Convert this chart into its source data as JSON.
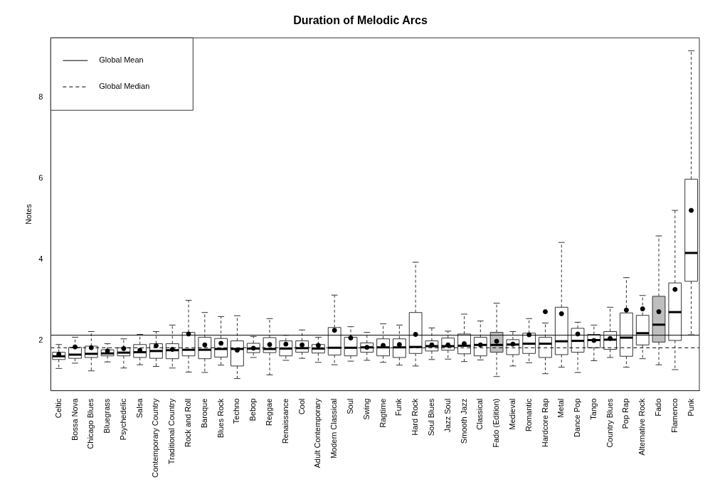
{
  "chart_data": {
    "type": "box",
    "title": "Duration of Melodic Arcs",
    "ylabel": "Notes",
    "categories": [
      "Celtic",
      "Bossa Nova",
      "Chicago Blues",
      "Bluegrass",
      "Psychedelic",
      "Salsa",
      "Contemporary Country",
      "Traditional Country",
      "Rock and Roll",
      "Baroque",
      "Blues Rock",
      "Techno",
      "Bebop",
      "Reggae",
      "Renaissance",
      "Cool",
      "Adult Contemporary",
      "Modern Classical",
      "Soul",
      "Swing",
      "Ragtime",
      "Funk",
      "Hard Rock",
      "Soul Blues",
      "Jazz Soul",
      "Smooth Jazz",
      "Classical",
      "Fado (Edition)",
      "Medieval",
      "Romantic",
      "Hardcore Rap",
      "Metal",
      "Dance Pop",
      "Tango",
      "Country Blues",
      "Pop Rap",
      "Alternative Rock",
      "Fado",
      "Flamenco",
      "Punk"
    ],
    "boxes": [
      {
        "low": 1.31,
        "q1": 1.53,
        "median": 1.61,
        "q3": 1.71,
        "high": 1.9,
        "mean": 1.66
      },
      {
        "low": 1.44,
        "q1": 1.56,
        "median": 1.65,
        "q3": 1.83,
        "high": 2.08,
        "mean": 1.84
      },
      {
        "low": 1.25,
        "q1": 1.58,
        "median": 1.67,
        "q3": 1.86,
        "high": 2.22,
        "mean": 1.82
      },
      {
        "low": 1.47,
        "q1": 1.62,
        "median": 1.68,
        "q3": 1.77,
        "high": 1.92,
        "mean": 1.74
      },
      {
        "low": 1.32,
        "q1": 1.62,
        "median": 1.7,
        "q3": 1.82,
        "high": 2.04,
        "mean": 1.8
      },
      {
        "low": 1.4,
        "q1": 1.58,
        "median": 1.71,
        "q3": 1.9,
        "high": 2.15,
        "mean": 1.76
      },
      {
        "low": 1.36,
        "q1": 1.56,
        "median": 1.74,
        "q3": 1.92,
        "high": 2.22,
        "mean": 1.87
      },
      {
        "low": 1.32,
        "q1": 1.55,
        "median": 1.76,
        "q3": 1.92,
        "high": 2.38,
        "mean": 1.78
      },
      {
        "low": 1.22,
        "q1": 1.62,
        "median": 1.77,
        "q3": 2.2,
        "high": 2.99,
        "mean": 2.16
      },
      {
        "low": 1.21,
        "q1": 1.55,
        "median": 1.77,
        "q3": 2.08,
        "high": 2.69,
        "mean": 1.89
      },
      {
        "low": 1.39,
        "q1": 1.59,
        "median": 1.79,
        "q3": 2.05,
        "high": 2.59,
        "mean": 1.93
      },
      {
        "low": 1.06,
        "q1": 1.37,
        "median": 1.79,
        "q3": 1.99,
        "high": 2.61,
        "mean": 1.76
      },
      {
        "low": 1.58,
        "q1": 1.7,
        "median": 1.8,
        "q3": 1.93,
        "high": 2.1,
        "mean": 1.81
      },
      {
        "low": 1.15,
        "q1": 1.7,
        "median": 1.79,
        "q3": 2.07,
        "high": 2.54,
        "mean": 1.9
      },
      {
        "low": 1.51,
        "q1": 1.62,
        "median": 1.8,
        "q3": 1.99,
        "high": 2.13,
        "mean": 1.91
      },
      {
        "low": 1.56,
        "q1": 1.71,
        "median": 1.81,
        "q3": 1.99,
        "high": 2.26,
        "mean": 1.89
      },
      {
        "low": 1.46,
        "q1": 1.69,
        "median": 1.8,
        "q3": 1.9,
        "high": 2.08,
        "mean": 1.88
      },
      {
        "low": 1.4,
        "q1": 1.64,
        "median": 1.82,
        "q3": 2.32,
        "high": 3.12,
        "mean": 2.25
      },
      {
        "low": 1.49,
        "q1": 1.62,
        "median": 1.82,
        "q3": 2.08,
        "high": 2.34,
        "mean": 2.06
      },
      {
        "low": 1.51,
        "q1": 1.71,
        "median": 1.83,
        "q3": 1.94,
        "high": 2.2,
        "mean": 1.83
      },
      {
        "low": 1.46,
        "q1": 1.62,
        "median": 1.83,
        "q3": 2.04,
        "high": 2.41,
        "mean": 1.88
      },
      {
        "low": 1.39,
        "q1": 1.58,
        "median": 1.83,
        "q3": 2.04,
        "high": 2.38,
        "mean": 1.9
      },
      {
        "low": 1.37,
        "q1": 1.68,
        "median": 1.84,
        "q3": 2.69,
        "high": 3.93,
        "mean": 2.15
      },
      {
        "low": 1.53,
        "q1": 1.74,
        "median": 1.86,
        "q3": 1.99,
        "high": 2.31,
        "mean": 1.89
      },
      {
        "low": 1.54,
        "q1": 1.76,
        "median": 1.86,
        "q3": 2.06,
        "high": 2.23,
        "mean": 1.89
      },
      {
        "low": 1.48,
        "q1": 1.67,
        "median": 1.87,
        "q3": 2.16,
        "high": 2.65,
        "mean": 1.92
      },
      {
        "low": 1.52,
        "q1": 1.62,
        "median": 1.89,
        "q3": 2.08,
        "high": 2.48,
        "mean": 1.89
      },
      {
        "low": 1.11,
        "q1": 1.71,
        "median": 1.89,
        "q3": 2.2,
        "high": 2.92,
        "mean": 1.98
      },
      {
        "low": 1.37,
        "q1": 1.65,
        "median": 1.9,
        "q3": 2.02,
        "high": 2.22,
        "mean": 1.91
      },
      {
        "low": 1.45,
        "q1": 1.68,
        "median": 1.92,
        "q3": 2.18,
        "high": 2.54,
        "mean": 2.14
      },
      {
        "low": 1.18,
        "q1": 1.58,
        "median": 1.92,
        "q3": 2.08,
        "high": 2.43,
        "mean": 2.71
      },
      {
        "low": 1.34,
        "q1": 1.65,
        "median": 1.98,
        "q3": 2.82,
        "high": 4.42,
        "mean": 2.66
      },
      {
        "low": 1.21,
        "q1": 1.71,
        "median": 1.99,
        "q3": 2.3,
        "high": 2.45,
        "mean": 2.16
      },
      {
        "low": 1.5,
        "q1": 1.82,
        "median": 2.01,
        "q3": 2.15,
        "high": 2.38,
        "mean": 2.0
      },
      {
        "low": 1.58,
        "q1": 1.78,
        "median": 2.02,
        "q3": 2.22,
        "high": 2.82,
        "mean": 2.05
      },
      {
        "low": 1.34,
        "q1": 1.61,
        "median": 2.07,
        "q3": 2.68,
        "high": 3.55,
        "mean": 2.75
      },
      {
        "low": 1.55,
        "q1": 1.89,
        "median": 2.18,
        "q3": 2.62,
        "high": 3.11,
        "mean": 2.78
      },
      {
        "low": 1.4,
        "q1": 1.96,
        "median": 2.39,
        "q3": 3.09,
        "high": 4.58,
        "mean": 2.71
      },
      {
        "low": 1.28,
        "q1": 2.0,
        "median": 2.7,
        "q3": 3.42,
        "high": 5.21,
        "mean": 3.26
      },
      {
        "low": 2.14,
        "q1": 3.46,
        "median": 4.16,
        "q3": 5.98,
        "high": 9.15,
        "mean": 5.21
      }
    ],
    "colors": [
      "#ffffff",
      "#ffffff",
      "#ffffff",
      "#ffffff",
      "#ffffff",
      "#ffffff",
      "#ffffff",
      "#ffffff",
      "#ffffff",
      "#ffffff",
      "#ffffff",
      "#ffffff",
      "#ffffff",
      "#ffffff",
      "#ffffff",
      "#ffffff",
      "#ffffff",
      "#ffffff",
      "#ffffff",
      "#ffffff",
      "#ffffff",
      "#ffffff",
      "#ffffff",
      "#ffffff",
      "#ffffff",
      "#ffffff",
      "#ffffff",
      "#bebebe",
      "#ffffff",
      "#ffffff",
      "#ffffff",
      "#ffffff",
      "#ffffff",
      "#ffffff",
      "#ffffff",
      "#ffffff",
      "#ffffff",
      "#bebebe",
      "#ffffff",
      "#ffffff"
    ],
    "ylim": [
      0.76,
      9.47
    ],
    "yticks": [
      2,
      4,
      6,
      8
    ],
    "grid": false,
    "legend": "top left",
    "ref_lines": [
      {
        "axis": "y",
        "value": 2.13,
        "label": "Global Mean",
        "line_style": "solid",
        "color": "#000000"
      },
      {
        "axis": "y",
        "value": 1.82,
        "label": "Global Median",
        "line_style": "dashed",
        "color": "#000000"
      }
    ]
  }
}
